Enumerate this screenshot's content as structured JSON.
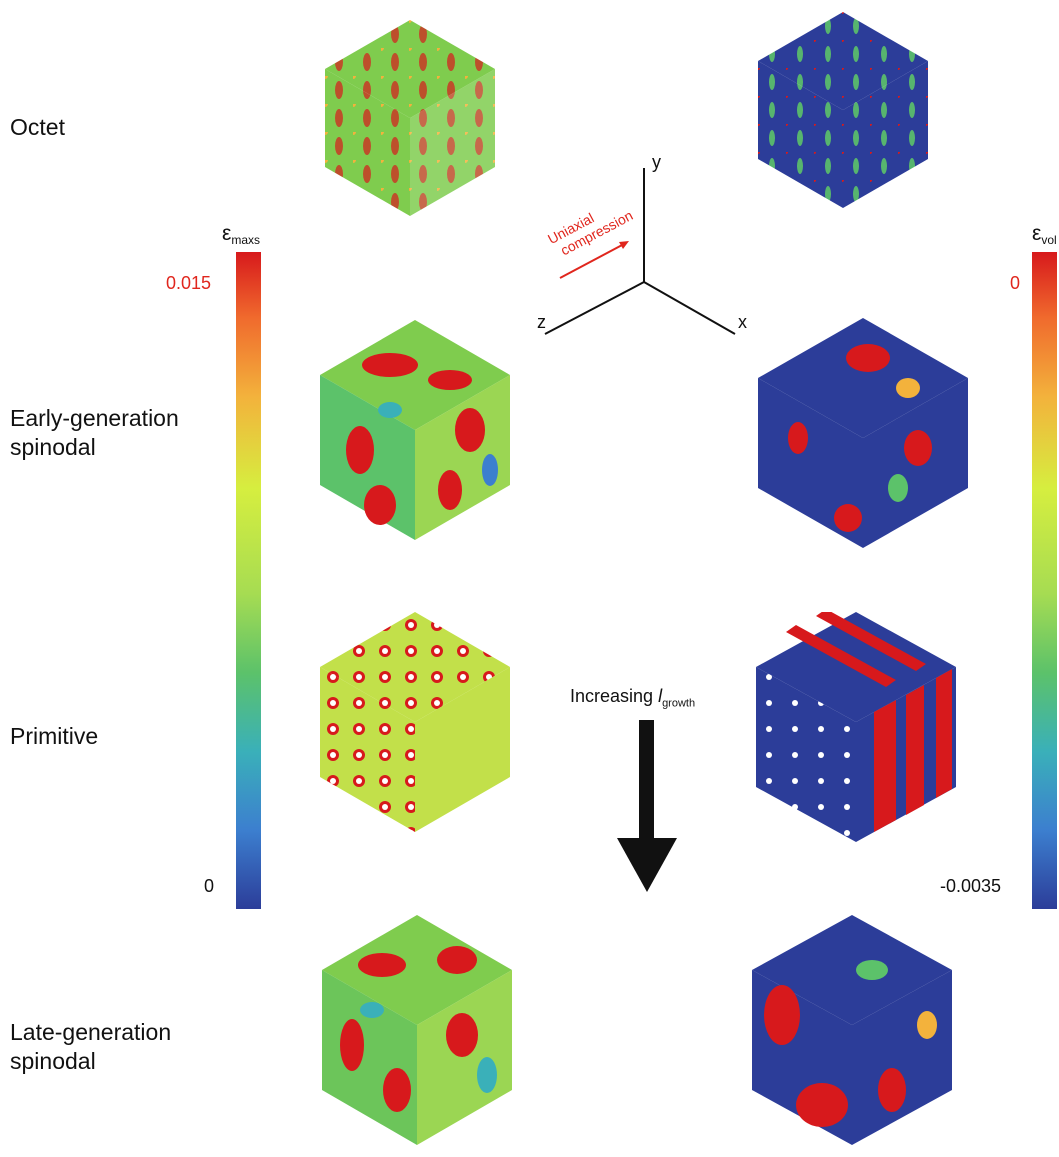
{
  "rows": [
    {
      "id": "octet",
      "label": "Octet"
    },
    {
      "id": "early",
      "label": "Early-generation\nspinodal"
    },
    {
      "id": "primitive",
      "label": "Primitive"
    },
    {
      "id": "late",
      "label": "Late-generation\nspinodal"
    }
  ],
  "left_scale": {
    "symbol": "ε",
    "subscript": "maxs",
    "max": "0.015",
    "min": "0"
  },
  "right_scale": {
    "symbol": "ε",
    "subscript": "vol",
    "max": "0",
    "min": "-0.0035"
  },
  "axes": {
    "x": "x",
    "y": "y",
    "z": "z",
    "load_line1": "Uniaxial",
    "load_line2": "compression"
  },
  "growth": {
    "prefix": "Increasing ",
    "var": "l",
    "subscript": "growth"
  },
  "colors": {
    "red": "#d7191c",
    "orange": "#f06a2d",
    "yellow_green": "#d6ee3f",
    "green": "#7fcc4e",
    "cyan": "#3ab0b9",
    "blue": "#2c3d99",
    "arrow": "#e0261d"
  }
}
